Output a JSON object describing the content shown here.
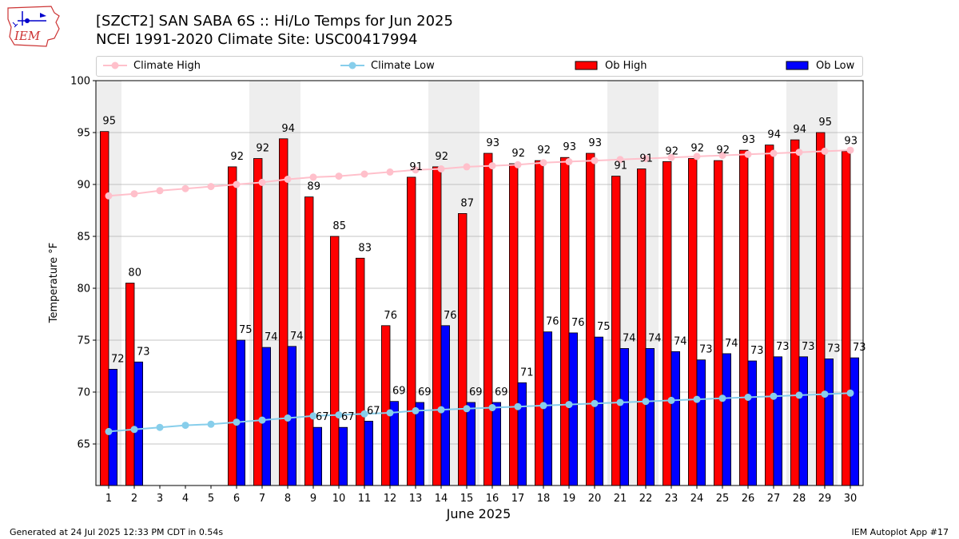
{
  "header": {
    "title_line1": "[SZCT2] SAN SABA 6S :: Hi/Lo Temps for Jun 2025",
    "title_line2": "NCEI 1991-2020 Climate Site: USC00417994",
    "logo_text": "IEM"
  },
  "legend": {
    "climate_high": "Climate High",
    "climate_low": "Climate Low",
    "ob_high": "Ob High",
    "ob_low": "Ob Low"
  },
  "footer": {
    "generated": "Generated at 24 Jul 2025 12:33 PM CDT in 0.54s",
    "app": "IEM Autoplot App #17"
  },
  "colors": {
    "ob_high": "#ff0000",
    "ob_low": "#0000ff",
    "climate_high": "#ffc0cb",
    "climate_low": "#87ceeb",
    "weekend_shade": "#eeeeee",
    "grid": "#b0b0b0"
  },
  "chart_data": {
    "type": "bar",
    "xlabel": "June 2025",
    "ylabel": "Temperature °F",
    "ylim": [
      61,
      100
    ],
    "yticks": [
      65,
      70,
      75,
      80,
      85,
      90,
      95,
      100
    ],
    "grid": "horizontal",
    "legend_position": "top",
    "categories": [
      1,
      2,
      3,
      4,
      5,
      6,
      7,
      8,
      9,
      10,
      11,
      12,
      13,
      14,
      15,
      16,
      17,
      18,
      19,
      20,
      21,
      22,
      23,
      24,
      25,
      26,
      27,
      28,
      29,
      30
    ],
    "shaded_days": [
      1,
      7,
      8,
      14,
      15,
      21,
      22,
      28,
      29
    ],
    "series": [
      {
        "name": "Ob High",
        "kind": "bar",
        "values": [
          95.1,
          80.5,
          null,
          null,
          null,
          91.7,
          92.5,
          94.4,
          88.8,
          85.0,
          82.9,
          76.4,
          90.7,
          91.7,
          87.2,
          93.0,
          92.0,
          92.3,
          92.6,
          93.0,
          90.8,
          91.5,
          92.2,
          92.5,
          92.3,
          93.3,
          93.8,
          94.3,
          95.0,
          93.2
        ],
        "labels": [
          "95",
          "80",
          "",
          "",
          "",
          "92",
          "92",
          "94",
          "89",
          "85",
          "83",
          "76",
          "91",
          "92",
          "87",
          "93",
          "92",
          "92",
          "93",
          "93",
          "91",
          "91",
          "92",
          "92",
          "92",
          "93",
          "94",
          "94",
          "95",
          "93"
        ]
      },
      {
        "name": "Ob Low",
        "kind": "bar",
        "values": [
          72.2,
          72.9,
          null,
          null,
          null,
          75.0,
          74.3,
          74.4,
          66.6,
          66.6,
          67.2,
          69.1,
          69.0,
          76.4,
          69.0,
          69.0,
          70.9,
          75.8,
          75.7,
          75.3,
          74.2,
          74.2,
          73.9,
          73.1,
          73.7,
          73.0,
          73.4,
          73.4,
          73.2,
          73.3
        ],
        "labels": [
          "72",
          "73",
          "",
          "",
          "",
          "75",
          "74",
          "74",
          "67",
          "67",
          "67",
          "69",
          "69",
          "76",
          "69",
          "69",
          "71",
          "76",
          "76",
          "75",
          "74",
          "74",
          "74",
          "73",
          "74",
          "73",
          "73",
          "73",
          "73",
          "73"
        ]
      },
      {
        "name": "Climate High",
        "kind": "line",
        "values": [
          88.9,
          89.1,
          89.4,
          89.6,
          89.8,
          90.0,
          90.2,
          90.5,
          90.7,
          90.8,
          91.0,
          91.2,
          91.4,
          91.5,
          91.7,
          91.8,
          91.9,
          92.1,
          92.2,
          92.3,
          92.4,
          92.5,
          92.6,
          92.7,
          92.8,
          92.9,
          93.0,
          93.1,
          93.2,
          93.3
        ]
      },
      {
        "name": "Climate Low",
        "kind": "line",
        "values": [
          66.2,
          66.4,
          66.6,
          66.8,
          66.9,
          67.1,
          67.3,
          67.5,
          67.7,
          67.8,
          67.9,
          68.0,
          68.2,
          68.3,
          68.4,
          68.5,
          68.6,
          68.7,
          68.8,
          68.9,
          69.0,
          69.1,
          69.2,
          69.3,
          69.4,
          69.5,
          69.6,
          69.7,
          69.8,
          69.9
        ]
      }
    ]
  }
}
